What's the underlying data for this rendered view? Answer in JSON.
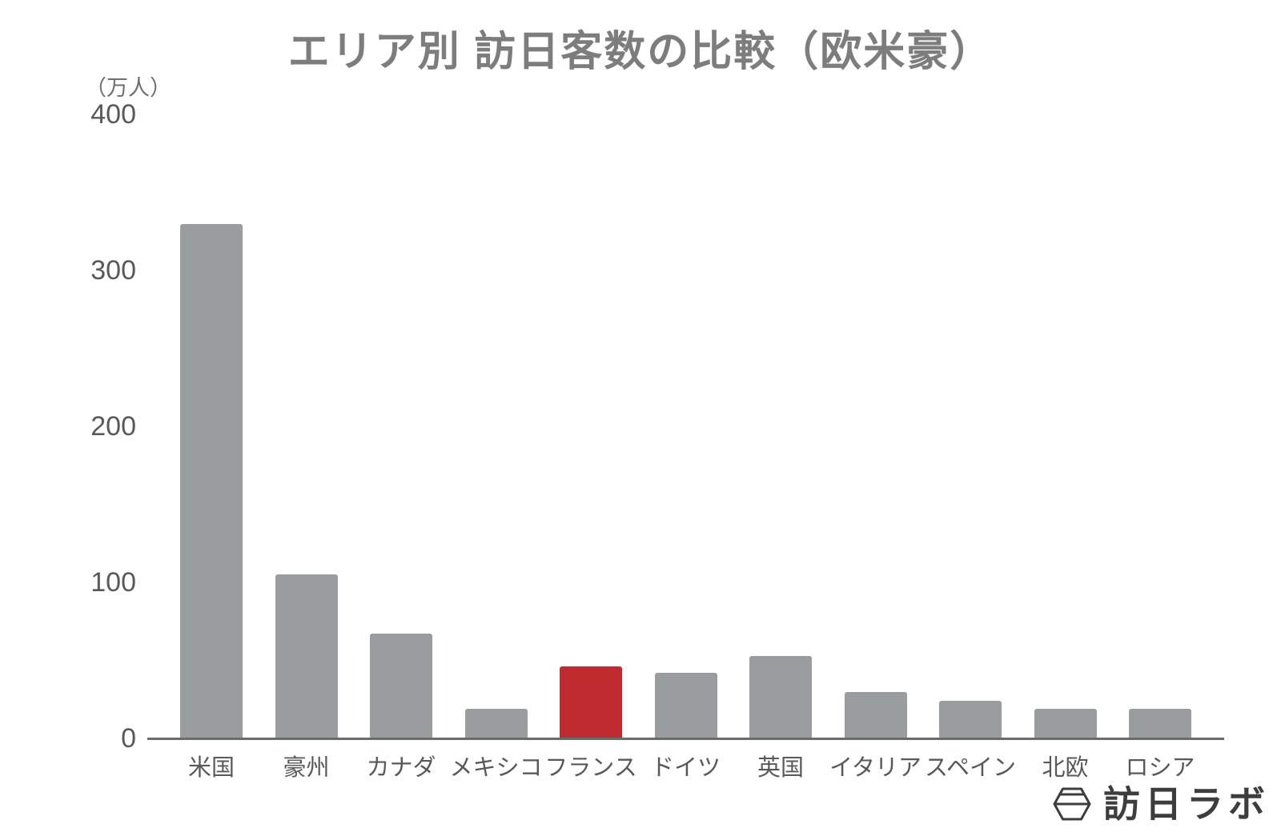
{
  "chart_data": {
    "type": "bar",
    "title": "エリア別 訪日客数の比較（欧米豪）",
    "unit_label": "（万人）",
    "xlabel": "",
    "ylabel": "（万人）",
    "categories": [
      "米国",
      "豪州",
      "カナダ",
      "メキシコ",
      "フランス",
      "ドイツ",
      "英国",
      "イタリア",
      "スペイン",
      "北欧",
      "ロシア"
    ],
    "values": [
      330,
      105,
      67,
      19,
      46,
      42,
      53,
      30,
      24,
      19,
      19
    ],
    "highlight_index": 4,
    "highlight_category": "フランス",
    "ylim": [
      0,
      400
    ],
    "yticks": [
      0,
      100,
      200,
      300,
      400
    ],
    "grid": false,
    "legend": "none",
    "bar_color": "#9a9d9d",
    "highlight_color": "#c02b30"
  },
  "branding": {
    "logo_text": "訪日ラボ",
    "logo_color": "#3d3d3d"
  },
  "colors": {
    "title_text": "#7d7d7d",
    "axis_label_text": "#595959",
    "axis_line": "#6b6b6b",
    "background": "#ffffff"
  }
}
